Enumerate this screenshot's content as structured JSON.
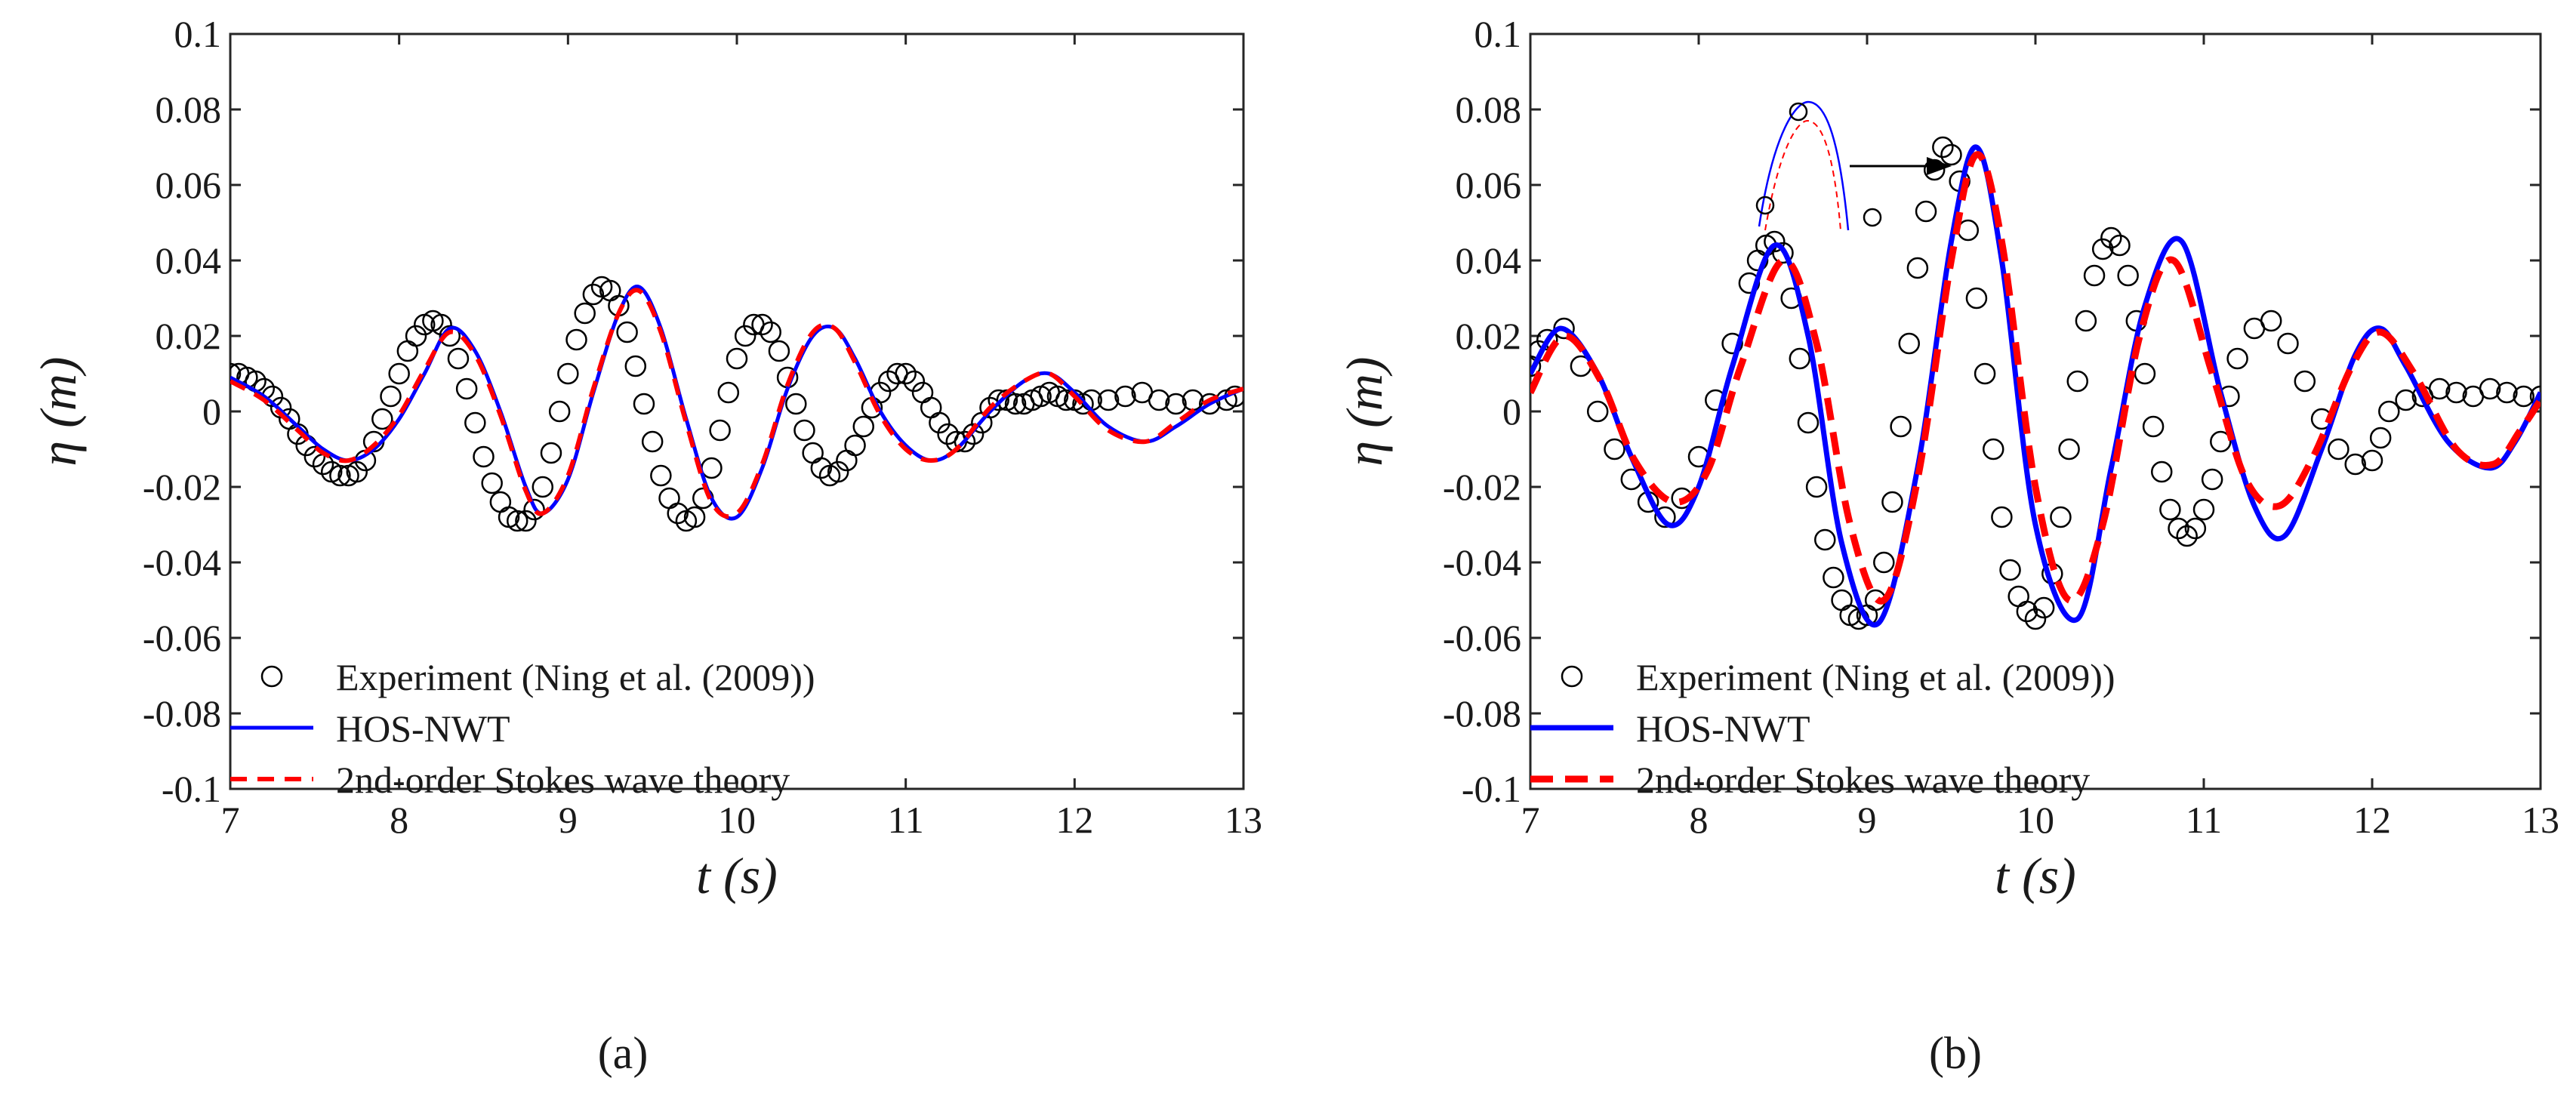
{
  "chart_data": [
    {
      "type": "line",
      "panel_label": "(a)",
      "xlabel": "t (s)",
      "ylabel": "η (m)",
      "xlim": [
        7,
        13
      ],
      "ylim": [
        -0.1,
        0.1
      ],
      "xticks": [
        "7",
        "8",
        "9",
        "10",
        "11",
        "12",
        "13"
      ],
      "yticks": [
        "0.1",
        "0.08",
        "0.06",
        "0.04",
        "0.02",
        "0",
        "-0.02",
        "-0.04",
        "-0.06",
        "-0.08",
        "-0.1"
      ],
      "legend_position": "bottom-left",
      "series": [
        {
          "name": "Experiment (Ning et al. (2009))",
          "style": "circle-markers",
          "color": "#000000",
          "x": [
            7.0,
            7.05,
            7.1,
            7.15,
            7.2,
            7.25,
            7.3,
            7.35,
            7.4,
            7.45,
            7.5,
            7.55,
            7.6,
            7.65,
            7.7,
            7.75,
            7.8,
            7.85,
            7.9,
            7.95,
            8.0,
            8.05,
            8.1,
            8.15,
            8.2,
            8.25,
            8.3,
            8.35,
            8.4,
            8.45,
            8.5,
            8.55,
            8.6,
            8.65,
            8.7,
            8.75,
            8.8,
            8.85,
            8.9,
            8.95,
            9.0,
            9.05,
            9.1,
            9.15,
            9.2,
            9.25,
            9.3,
            9.35,
            9.4,
            9.45,
            9.5,
            9.55,
            9.6,
            9.65,
            9.7,
            9.75,
            9.8,
            9.85,
            9.9,
            9.95,
            10.0,
            10.05,
            10.1,
            10.15,
            10.2,
            10.25,
            10.3,
            10.35,
            10.4,
            10.45,
            10.5,
            10.55,
            10.6,
            10.65,
            10.7,
            10.75,
            10.8,
            10.85,
            10.9,
            10.95,
            11.0,
            11.05,
            11.1,
            11.15,
            11.2,
            11.25,
            11.3,
            11.35,
            11.4,
            11.45,
            11.5,
            11.55,
            11.6,
            11.65,
            11.7,
            11.75,
            11.8,
            11.85,
            11.9,
            11.95,
            12.0,
            12.05,
            12.1,
            12.2,
            12.3,
            12.4,
            12.5,
            12.6,
            12.7,
            12.8,
            12.9,
            12.95
          ],
          "y": [
            0.01,
            0.01,
            0.009,
            0.008,
            0.006,
            0.004,
            0.001,
            -0.002,
            -0.006,
            -0.009,
            -0.012,
            -0.014,
            -0.016,
            -0.017,
            -0.017,
            -0.016,
            -0.013,
            -0.008,
            -0.002,
            0.004,
            0.01,
            0.016,
            0.02,
            0.023,
            0.024,
            0.023,
            0.02,
            0.014,
            0.006,
            -0.003,
            -0.012,
            -0.019,
            -0.024,
            -0.028,
            -0.029,
            -0.029,
            -0.026,
            -0.02,
            -0.011,
            0.0,
            0.01,
            0.019,
            0.026,
            0.031,
            0.033,
            0.032,
            0.028,
            0.021,
            0.012,
            0.002,
            -0.008,
            -0.017,
            -0.023,
            -0.027,
            -0.029,
            -0.028,
            -0.023,
            -0.015,
            -0.005,
            0.005,
            0.014,
            0.02,
            0.023,
            0.023,
            0.021,
            0.016,
            0.009,
            0.002,
            -0.005,
            -0.011,
            -0.015,
            -0.017,
            -0.016,
            -0.013,
            -0.009,
            -0.004,
            0.001,
            0.005,
            0.008,
            0.01,
            0.01,
            0.008,
            0.005,
            0.001,
            -0.003,
            -0.006,
            -0.008,
            -0.008,
            -0.006,
            -0.003,
            0.001,
            0.003,
            0.003,
            0.002,
            0.002,
            0.003,
            0.004,
            0.005,
            0.004,
            0.003,
            0.003,
            0.002,
            0.003,
            0.003,
            0.004,
            0.005,
            0.003,
            0.002,
            0.003,
            0.002,
            0.003,
            0.004
          ]
        },
        {
          "name": "HOS-NWT",
          "style": "solid",
          "color": "#0000ff",
          "x": [
            7.0,
            7.2,
            7.4,
            7.55,
            7.7,
            7.85,
            8.0,
            8.15,
            8.3,
            8.45,
            8.6,
            8.75,
            8.85,
            9.0,
            9.15,
            9.3,
            9.42,
            9.55,
            9.7,
            9.85,
            10.0,
            10.15,
            10.3,
            10.45,
            10.58,
            10.7,
            10.85,
            11.0,
            11.15,
            11.3,
            11.5,
            11.7,
            11.85,
            12.0,
            12.2,
            12.42,
            12.6,
            12.8,
            13.0
          ],
          "y": [
            0.009,
            0.004,
            -0.004,
            -0.01,
            -0.013,
            -0.01,
            -0.002,
            0.01,
            0.022,
            0.016,
            0.0,
            -0.02,
            -0.027,
            -0.018,
            0.005,
            0.026,
            0.033,
            0.022,
            -0.002,
            -0.023,
            -0.028,
            -0.015,
            0.006,
            0.02,
            0.022,
            0.014,
            0.0,
            -0.009,
            -0.013,
            -0.01,
            0.0,
            0.008,
            0.01,
            0.005,
            -0.004,
            -0.008,
            -0.004,
            0.002,
            0.006
          ]
        },
        {
          "name": "2nd-order Stokes wave theory",
          "style": "dashed",
          "color": "#ff0000",
          "x": [
            7.0,
            7.2,
            7.4,
            7.55,
            7.7,
            7.85,
            8.0,
            8.15,
            8.3,
            8.45,
            8.6,
            8.75,
            8.85,
            9.0,
            9.15,
            9.3,
            9.42,
            9.55,
            9.7,
            9.85,
            10.0,
            10.15,
            10.3,
            10.45,
            10.58,
            10.7,
            10.85,
            11.0,
            11.15,
            11.3,
            11.5,
            11.7,
            11.85,
            12.0,
            12.2,
            12.42,
            12.6,
            12.8,
            13.0
          ],
          "y": [
            0.008,
            0.003,
            -0.005,
            -0.011,
            -0.013,
            -0.009,
            -0.001,
            0.011,
            0.021,
            0.015,
            -0.001,
            -0.021,
            -0.027,
            -0.017,
            0.006,
            0.026,
            0.032,
            0.021,
            -0.003,
            -0.024,
            -0.027,
            -0.014,
            0.007,
            0.021,
            0.022,
            0.013,
            -0.001,
            -0.01,
            -0.013,
            -0.01,
            0.001,
            0.008,
            0.01,
            0.004,
            -0.005,
            -0.008,
            -0.003,
            0.003,
            0.006
          ]
        }
      ]
    },
    {
      "type": "line",
      "panel_label": "(b)",
      "xlabel": "t (s)",
      "ylabel": "η (m)",
      "xlim": [
        7,
        13
      ],
      "ylim": [
        -0.1,
        0.1
      ],
      "xticks": [
        "7",
        "8",
        "9",
        "10",
        "11",
        "12",
        "13"
      ],
      "yticks": [
        "0.1",
        "0.08",
        "0.06",
        "0.04",
        "0.02",
        "0",
        "-0.02",
        "-0.04",
        "-0.06",
        "-0.08",
        "-0.1"
      ],
      "legend_position": "bottom-left",
      "annotation": "inset magnifying the crest near t = 9.6 s with arrow pointing to the peak",
      "series": [
        {
          "name": "Experiment (Ning et al. (2009))",
          "style": "circle-markers",
          "color": "#000000",
          "x": [
            7.0,
            7.05,
            7.1,
            7.2,
            7.3,
            7.4,
            7.5,
            7.6,
            7.7,
            7.8,
            7.9,
            8.0,
            8.1,
            8.2,
            8.3,
            8.35,
            8.4,
            8.45,
            8.5,
            8.55,
            8.6,
            8.65,
            8.7,
            8.75,
            8.8,
            8.85,
            8.9,
            8.95,
            9.0,
            9.05,
            9.1,
            9.15,
            9.2,
            9.25,
            9.3,
            9.35,
            9.4,
            9.45,
            9.5,
            9.55,
            9.6,
            9.65,
            9.7,
            9.75,
            9.8,
            9.85,
            9.9,
            9.95,
            10.0,
            10.05,
            10.1,
            10.15,
            10.2,
            10.25,
            10.3,
            10.35,
            10.4,
            10.45,
            10.5,
            10.55,
            10.6,
            10.65,
            10.7,
            10.75,
            10.8,
            10.85,
            10.9,
            10.95,
            11.0,
            11.05,
            11.1,
            11.15,
            11.2,
            11.3,
            11.4,
            11.5,
            11.6,
            11.7,
            11.8,
            11.9,
            12.0,
            12.05,
            12.1,
            12.2,
            12.3,
            12.4,
            12.5,
            12.6,
            12.7,
            12.8,
            12.9,
            13.0
          ],
          "y": [
            0.012,
            0.016,
            0.019,
            0.022,
            0.012,
            0.0,
            -0.01,
            -0.018,
            -0.024,
            -0.028,
            -0.023,
            -0.012,
            0.003,
            0.018,
            0.034,
            0.04,
            0.044,
            0.045,
            0.042,
            0.03,
            0.014,
            -0.003,
            -0.02,
            -0.034,
            -0.044,
            -0.05,
            -0.054,
            -0.055,
            -0.054,
            -0.05,
            -0.04,
            -0.024,
            -0.004,
            0.018,
            0.038,
            0.053,
            0.064,
            0.07,
            0.068,
            0.061,
            0.048,
            0.03,
            0.01,
            -0.01,
            -0.028,
            -0.042,
            -0.049,
            -0.053,
            -0.055,
            -0.052,
            -0.043,
            -0.028,
            -0.01,
            0.008,
            0.024,
            0.036,
            0.043,
            0.046,
            0.044,
            0.036,
            0.024,
            0.01,
            -0.004,
            -0.016,
            -0.026,
            -0.031,
            -0.033,
            -0.031,
            -0.026,
            -0.018,
            -0.008,
            0.004,
            0.014,
            0.022,
            0.024,
            0.018,
            0.008,
            -0.002,
            -0.01,
            -0.014,
            -0.013,
            -0.007,
            0.0,
            0.003,
            0.004,
            0.006,
            0.005,
            0.004,
            0.006,
            0.005,
            0.004,
            0.004
          ]
        },
        {
          "name": "HOS-NWT",
          "style": "solid",
          "color": "#0000ff",
          "x": [
            7.0,
            7.18,
            7.4,
            7.6,
            7.82,
            8.0,
            8.2,
            8.45,
            8.65,
            8.85,
            9.07,
            9.3,
            9.5,
            9.65,
            9.8,
            10.0,
            10.25,
            10.45,
            10.65,
            10.87,
            11.1,
            11.3,
            11.48,
            11.7,
            11.9,
            12.05,
            12.2,
            12.45,
            12.7,
            12.85,
            13.0
          ],
          "y": [
            0.01,
            0.022,
            0.01,
            -0.012,
            -0.03,
            -0.02,
            0.012,
            0.044,
            0.02,
            -0.035,
            -0.056,
            -0.015,
            0.045,
            0.07,
            0.04,
            -0.03,
            -0.055,
            -0.015,
            0.028,
            0.045,
            0.005,
            -0.025,
            -0.033,
            -0.01,
            0.015,
            0.022,
            0.012,
            -0.008,
            -0.015,
            -0.008,
            0.005
          ]
        },
        {
          "name": "2nd-order Stokes wave theory",
          "style": "dashed",
          "color": "#ff0000",
          "x": [
            7.0,
            7.2,
            7.42,
            7.62,
            7.85,
            8.05,
            8.25,
            8.5,
            8.7,
            8.9,
            9.1,
            9.3,
            9.5,
            9.65,
            9.8,
            10.0,
            10.2,
            10.4,
            10.62,
            10.82,
            11.05,
            11.25,
            11.45,
            11.65,
            11.88,
            12.05,
            12.25,
            12.5,
            12.72,
            12.88,
            13.0
          ],
          "y": [
            0.005,
            0.02,
            0.008,
            -0.013,
            -0.024,
            -0.016,
            0.012,
            0.04,
            0.018,
            -0.03,
            -0.05,
            -0.018,
            0.04,
            0.068,
            0.045,
            -0.02,
            -0.05,
            -0.03,
            0.02,
            0.04,
            0.01,
            -0.018,
            -0.025,
            -0.012,
            0.012,
            0.021,
            0.01,
            -0.01,
            -0.014,
            -0.005,
            0.003
          ]
        }
      ]
    }
  ]
}
